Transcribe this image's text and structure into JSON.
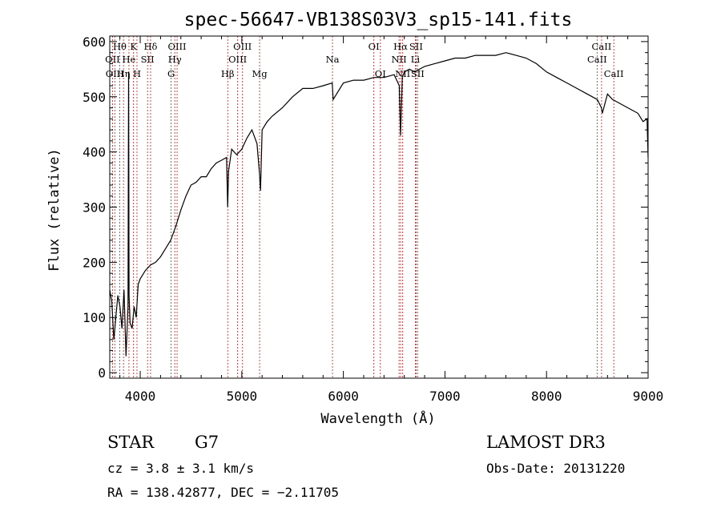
{
  "chart_data": {
    "type": "line",
    "title": "spec-56647-VB138S03V3_sp15-141.fits",
    "xlabel": "Wavelength (Å)",
    "ylabel": "Flux (relative)",
    "xlim": [
      3700,
      9000
    ],
    "ylim": [
      -10,
      610
    ],
    "xticks": [
      4000,
      5000,
      6000,
      7000,
      8000,
      9000
    ],
    "yticks": [
      0,
      100,
      200,
      300,
      400,
      500,
      600
    ],
    "grid": false,
    "series": [
      {
        "x": [
          3700,
          3720,
          3740,
          3760,
          3780,
          3800,
          3820,
          3840,
          3860,
          3880,
          3885,
          3890,
          3900,
          3920,
          3940,
          3960,
          3980,
          4000,
          4050,
          4100,
          4150,
          4200,
          4250,
          4300,
          4350,
          4400,
          4450,
          4500,
          4550,
          4600,
          4650,
          4700,
          4750,
          4800,
          4850,
          4861,
          4870,
          4900,
          4950,
          5000,
          5050,
          5100,
          5150,
          5175,
          5184,
          5200,
          5250,
          5300,
          5400,
          5500,
          5600,
          5700,
          5800,
          5890,
          5900,
          6000,
          6100,
          6200,
          6300,
          6400,
          6500,
          6550,
          6563,
          6580,
          6600,
          6650,
          6700,
          6800,
          6900,
          7000,
          7100,
          7200,
          7300,
          7400,
          7500,
          7600,
          7700,
          7800,
          7900,
          8000,
          8100,
          8200,
          8300,
          8400,
          8500,
          8540,
          8550,
          8600,
          8650,
          8700,
          8800,
          8900,
          8950,
          8990,
          9000
        ],
        "y": [
          150,
          130,
          60,
          100,
          140,
          120,
          80,
          150,
          30,
          120,
          545,
          140,
          90,
          80,
          120,
          100,
          160,
          170,
          185,
          195,
          200,
          210,
          225,
          240,
          265,
          295,
          320,
          340,
          345,
          355,
          355,
          370,
          380,
          385,
          390,
          300,
          365,
          405,
          395,
          405,
          425,
          440,
          415,
          360,
          330,
          440,
          455,
          465,
          480,
          500,
          515,
          515,
          520,
          525,
          495,
          525,
          530,
          530,
          535,
          535,
          540,
          520,
          430,
          535,
          545,
          550,
          545,
          555,
          560,
          565,
          570,
          570,
          575,
          575,
          575,
          580,
          575,
          570,
          560,
          545,
          535,
          525,
          515,
          505,
          495,
          480,
          470,
          505,
          495,
          490,
          480,
          470,
          455,
          460,
          390
        ]
      }
    ],
    "spectral_lines": [
      {
        "label": "Hθ",
        "x": 3798,
        "row": 1
      },
      {
        "label": "OII",
        "x": 3727,
        "row": 2
      },
      {
        "label": "OIII",
        "x": 3750,
        "row": 3
      },
      {
        "label": "Hη",
        "x": 3835,
        "row": 3
      },
      {
        "label": "He",
        "x": 3889,
        "row": 2
      },
      {
        "label": "K",
        "x": 3934,
        "row": 1
      },
      {
        "label": "H",
        "x": 3968,
        "row": 3
      },
      {
        "label": "SII",
        "x": 4072,
        "row": 2
      },
      {
        "label": "Hδ",
        "x": 4102,
        "row": 1
      },
      {
        "label": "G",
        "x": 4304,
        "row": 3
      },
      {
        "label": "OIII",
        "x": 4363,
        "row": 1
      },
      {
        "label": "Hγ",
        "x": 4340,
        "row": 2
      },
      {
        "label": "Hβ",
        "x": 4861,
        "row": 3
      },
      {
        "label": "OIII",
        "x": 5007,
        "row": 1
      },
      {
        "label": "OIII",
        "x": 4959,
        "row": 2
      },
      {
        "label": "Mg",
        "x": 5175,
        "row": 3
      },
      {
        "label": "Na",
        "x": 5893,
        "row": 2
      },
      {
        "label": "OI",
        "x": 6300,
        "row": 1
      },
      {
        "label": "OI",
        "x": 6364,
        "row": 3
      },
      {
        "label": "Hα",
        "x": 6563,
        "row": 1
      },
      {
        "label": "NII",
        "x": 6548,
        "row": 2
      },
      {
        "label": "NII",
        "x": 6584,
        "row": 3
      },
      {
        "label": "SII",
        "x": 6716,
        "row": 1
      },
      {
        "label": "Li",
        "x": 6708,
        "row": 2
      },
      {
        "label": "SII",
        "x": 6731,
        "row": 3
      },
      {
        "label": "CaII",
        "x": 8542,
        "row": 1
      },
      {
        "label": "CaII",
        "x": 8498,
        "row": 2
      },
      {
        "label": "CaII",
        "x": 8662,
        "row": 3
      }
    ]
  },
  "info": {
    "class_label": "STAR",
    "subclass": "G7",
    "survey": "LAMOST DR3",
    "redshift_text": "cz = 3.8 ± 3.1 km/s",
    "obs_date": "Obs-Date: 20131220",
    "coords": "RA = 138.42877, DEC =  −2.11705"
  }
}
